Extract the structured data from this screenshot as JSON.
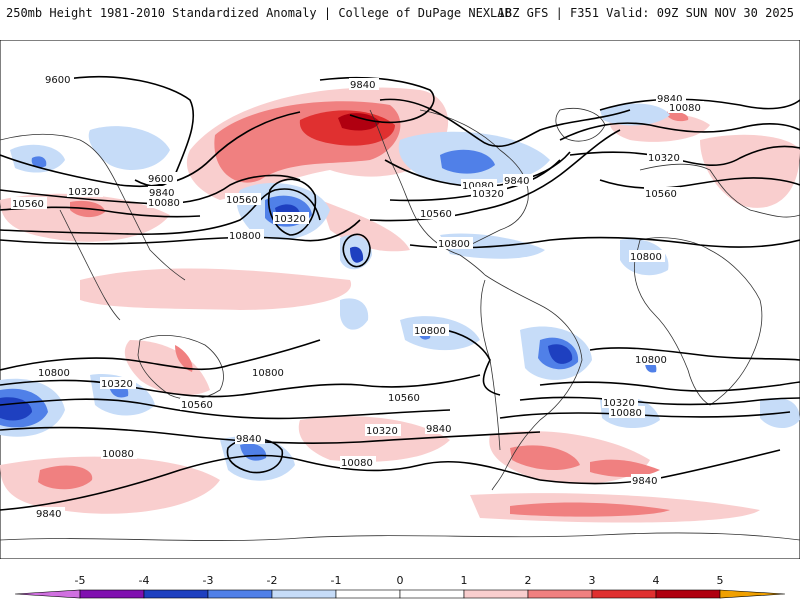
{
  "header": {
    "title_left": "250mb Height 1981-2010 Standardized Anomaly | College of DuPage NEXLAB",
    "title_right": "18Z GFS | F351 Valid: 09Z SUN NOV 30 2025"
  },
  "colors": {
    "neg5": "#d070e0",
    "neg4": "#8010b0",
    "neg3": "#1e40c0",
    "neg2": "#5080e8",
    "neg1": "#c6dcf8",
    "zero": "#ffffff",
    "pos1": "#f9cece",
    "pos2": "#f08080",
    "pos3": "#e03030",
    "pos4": "#b00010",
    "pos5": "#f0a000",
    "contour": "#000000",
    "coast": "#333333"
  },
  "contour_labels": [
    {
      "id": "c9600a",
      "text": "9600"
    },
    {
      "id": "c9840a",
      "text": "9840"
    },
    {
      "id": "c9840b",
      "text": "9840"
    },
    {
      "id": "c10080a",
      "text": "10080"
    },
    {
      "id": "c10320a",
      "text": "10320"
    },
    {
      "id": "c9600b",
      "text": "9600"
    },
    {
      "id": "c9840c",
      "text": "9840"
    },
    {
      "id": "c10080b",
      "text": "10080"
    },
    {
      "id": "c10560a",
      "text": "10560"
    },
    {
      "id": "c10560b",
      "text": "10560"
    },
    {
      "id": "c10320b",
      "text": "10320"
    },
    {
      "id": "c10800a",
      "text": "10800"
    },
    {
      "id": "c10080c",
      "text": "10080"
    },
    {
      "id": "c10320c",
      "text": "10320"
    },
    {
      "id": "c9840d",
      "text": "9840"
    },
    {
      "id": "c10560c",
      "text": "10560"
    },
    {
      "id": "c10800b",
      "text": "10800"
    },
    {
      "id": "c10320d",
      "text": "10320"
    },
    {
      "id": "c10560d",
      "text": "10560"
    },
    {
      "id": "c10800c",
      "text": "10800"
    },
    {
      "id": "c10800d",
      "text": "10800"
    },
    {
      "id": "c10800e",
      "text": "10800"
    },
    {
      "id": "c10800f",
      "text": "10800"
    },
    {
      "id": "c10320e",
      "text": "10320"
    },
    {
      "id": "c10560e",
      "text": "10560"
    },
    {
      "id": "c10800g",
      "text": "10800"
    },
    {
      "id": "c10560f",
      "text": "10560"
    },
    {
      "id": "c10320f",
      "text": "10320"
    },
    {
      "id": "c10080d",
      "text": "10080"
    },
    {
      "id": "c10320g",
      "text": "10320"
    },
    {
      "id": "c9840e",
      "text": "9840"
    },
    {
      "id": "c10080e",
      "text": "10080"
    },
    {
      "id": "c9840f",
      "text": "9840"
    },
    {
      "id": "c10080f",
      "text": "10080"
    },
    {
      "id": "c9840g",
      "text": "9840"
    },
    {
      "id": "c9840h",
      "text": "9840"
    }
  ],
  "colorbar": {
    "ticks": [
      "-5",
      "-4",
      "-3",
      "-2",
      "-1",
      "0",
      "1",
      "2",
      "3",
      "4",
      "5"
    ]
  }
}
